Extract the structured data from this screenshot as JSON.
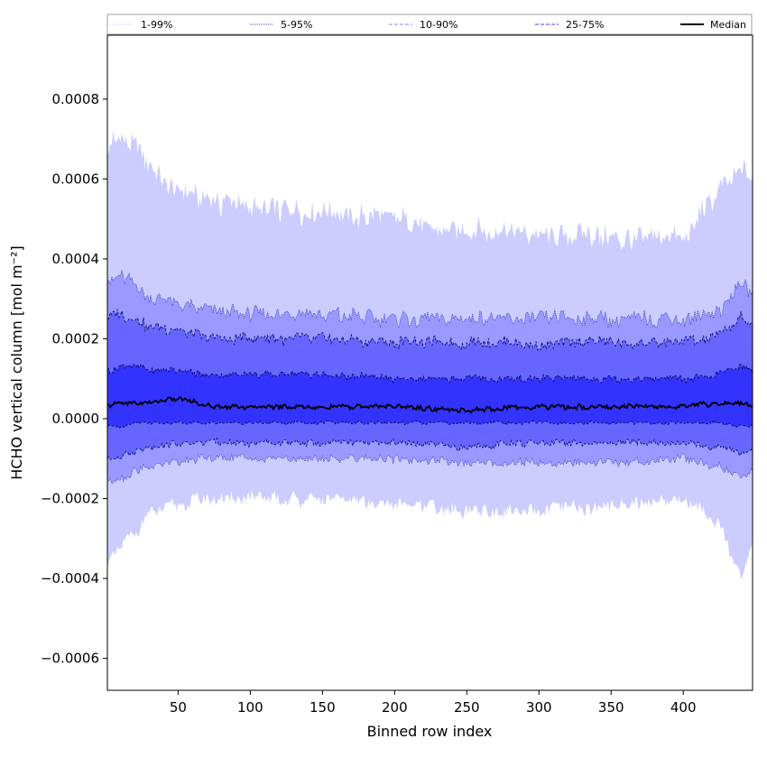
{
  "chart_data": {
    "type": "area",
    "xlabel": "Binned row index",
    "ylabel": "HCHO vertical column [mol m⁻²]",
    "xlim": [
      1,
      448
    ],
    "ylim": [
      -0.00068,
      0.00096
    ],
    "x_ticks": [
      50,
      100,
      150,
      200,
      250,
      300,
      350,
      400
    ],
    "x_tick_labels": [
      "50",
      "100",
      "150",
      "200",
      "250",
      "300",
      "350",
      "400"
    ],
    "y_ticks": [
      -0.0006,
      -0.0004,
      -0.0002,
      0.0,
      0.0002,
      0.0004,
      0.0006,
      0.0008
    ],
    "y_tick_labels": [
      "−0.0006",
      "−0.0004",
      "−0.0002",
      "0.0000",
      "0.0002",
      "0.0004",
      "0.0006",
      "0.0008"
    ],
    "grid": false,
    "legend_placement": "top (above plot, single row)",
    "colors": {
      "band_1_99": "#ccccff",
      "band_5_95": "#9999ff",
      "band_10_90": "#6666ff",
      "band_25_75": "#3333ff",
      "median": "#000000"
    },
    "legend": [
      {
        "label": "1-99%",
        "style": "dotted",
        "color": "#c8c8ff"
      },
      {
        "label": "5-95%",
        "style": "dotted",
        "color": "#4a4ad0"
      },
      {
        "label": "10-90%",
        "style": "dashed",
        "color": "#8080ff"
      },
      {
        "label": "25-75%",
        "style": "dashed",
        "color": "#4040ff"
      },
      {
        "label": "Median",
        "style": "solid",
        "color": "#000000"
      }
    ],
    "x_samples": [
      1,
      10,
      20,
      30,
      50,
      75,
      100,
      150,
      200,
      250,
      300,
      350,
      400,
      425,
      440,
      448
    ],
    "series": [
      {
        "name": "1-99%",
        "lower": [
          -0.00036,
          -0.00032,
          -0.00028,
          -0.00024,
          -0.00021,
          -0.0002,
          -0.0002,
          -0.0002,
          -0.00021,
          -0.00023,
          -0.00023,
          -0.00022,
          -0.0002,
          -0.00026,
          -0.0004,
          -0.0003
        ],
        "upper": [
          0.00066,
          0.00072,
          0.00068,
          0.00064,
          0.00056,
          0.00054,
          0.00053,
          0.00051,
          0.0005,
          0.00047,
          0.00046,
          0.00045,
          0.00045,
          0.00057,
          0.00063,
          0.00059
        ]
      },
      {
        "name": "5-95%",
        "lower": [
          -0.00016,
          -0.00015,
          -0.00013,
          -0.00012,
          -0.00011,
          -0.0001,
          -0.0001,
          -0.0001,
          -0.0001,
          -0.00011,
          -0.00011,
          -0.00011,
          -0.0001,
          -0.00012,
          -0.00015,
          -0.00013
        ],
        "upper": [
          0.00034,
          0.00036,
          0.00034,
          0.0003,
          0.00029,
          0.00027,
          0.00026,
          0.00026,
          0.00025,
          0.00025,
          0.00025,
          0.00025,
          0.00025,
          0.00027,
          0.00034,
          0.00032
        ]
      },
      {
        "name": "10-90%",
        "lower": [
          -0.0001,
          -9e-05,
          -8e-05,
          -7e-05,
          -6e-05,
          -6e-05,
          -6e-05,
          -6e-05,
          -6e-05,
          -7e-05,
          -6e-05,
          -6e-05,
          -6e-05,
          -7e-05,
          -9e-05,
          -8e-05
        ],
        "upper": [
          0.00025,
          0.00026,
          0.00025,
          0.00023,
          0.00022,
          0.0002,
          0.0002,
          0.0002,
          0.00019,
          0.00019,
          0.00019,
          0.00019,
          0.00019,
          0.00021,
          0.00025,
          0.00024
        ]
      },
      {
        "name": "25-75%",
        "lower": [
          -2e-05,
          -2e-05,
          -1e-05,
          -1e-05,
          -1e-05,
          -1e-05,
          -1e-05,
          -1e-05,
          -1e-05,
          -1e-05,
          -1e-05,
          -1e-05,
          -1e-05,
          -1e-05,
          -2e-05,
          -2e-05
        ],
        "upper": [
          0.00012,
          0.00013,
          0.00013,
          0.00012,
          0.00012,
          0.00011,
          0.00011,
          0.00011,
          0.0001,
          0.0001,
          0.0001,
          0.0001,
          0.0001,
          0.00011,
          0.00013,
          0.00012
        ]
      },
      {
        "name": "Median",
        "values": [
          3e-05,
          4e-05,
          4e-05,
          4e-05,
          5e-05,
          3e-05,
          3e-05,
          3e-05,
          3e-05,
          2e-05,
          3e-05,
          3e-05,
          3e-05,
          4e-05,
          4e-05,
          3e-05
        ]
      }
    ]
  }
}
